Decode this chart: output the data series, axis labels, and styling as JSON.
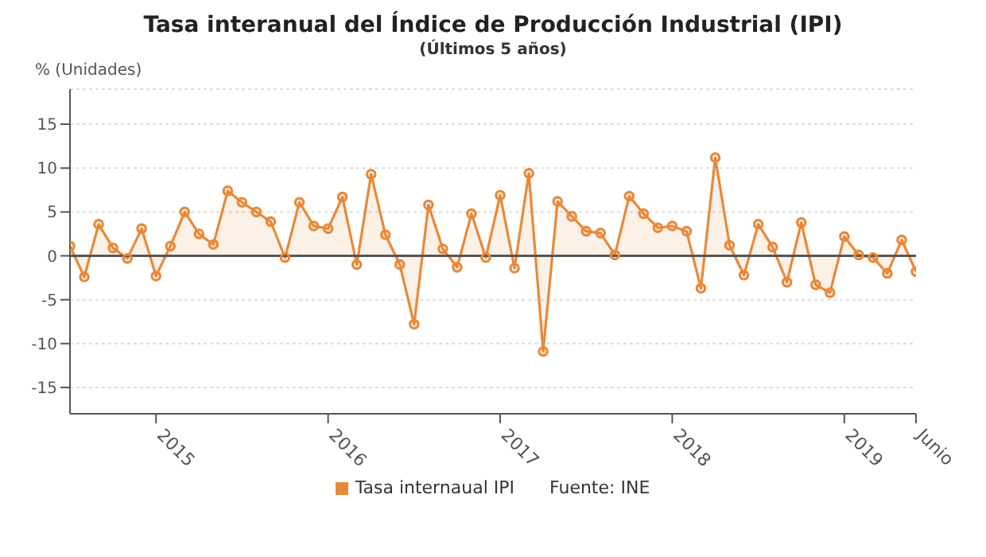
{
  "chart_data": {
    "type": "area",
    "title": "Tasa interanual del Índice de Producción Industrial (IPI)",
    "subtitle": "(Últimos 5 años)",
    "ylabel": "% (Unidades)",
    "x": [
      "2014-07",
      "2014-08",
      "2014-09",
      "2014-10",
      "2014-11",
      "2014-12",
      "2015-01",
      "2015-02",
      "2015-03",
      "2015-04",
      "2015-05",
      "2015-06",
      "2015-07",
      "2015-08",
      "2015-09",
      "2015-10",
      "2015-11",
      "2015-12",
      "2016-01",
      "2016-02",
      "2016-03",
      "2016-04",
      "2016-05",
      "2016-06",
      "2016-07",
      "2016-08",
      "2016-09",
      "2016-10",
      "2016-11",
      "2016-12",
      "2017-01",
      "2017-02",
      "2017-03",
      "2017-04",
      "2017-05",
      "2017-06",
      "2017-07",
      "2017-08",
      "2017-09",
      "2017-10",
      "2017-11",
      "2017-12",
      "2018-01",
      "2018-02",
      "2018-03",
      "2018-04",
      "2018-05",
      "2018-06",
      "2018-07",
      "2018-08",
      "2018-09",
      "2018-10",
      "2018-11",
      "2018-12",
      "2019-01",
      "2019-02",
      "2019-03",
      "2019-04",
      "2019-05",
      "2019-06"
    ],
    "series": [
      {
        "name": "Tasa internaual IPI",
        "color": "#e8893a",
        "values": [
          1.1,
          -2.4,
          3.6,
          0.9,
          -0.3,
          3.1,
          -2.3,
          1.1,
          5.0,
          2.5,
          1.3,
          7.4,
          6.1,
          5.0,
          3.9,
          -0.2,
          6.1,
          3.4,
          3.1,
          6.7,
          -1.0,
          9.3,
          2.4,
          -1.0,
          -7.8,
          5.8,
          0.8,
          -1.3,
          4.8,
          -0.2,
          6.9,
          -1.4,
          9.4,
          -10.9,
          6.2,
          4.5,
          2.8,
          2.6,
          0.1,
          6.8,
          4.8,
          3.2,
          3.4,
          2.8,
          -3.7,
          11.2,
          1.2,
          -2.2,
          3.6,
          1.0,
          -3.0,
          3.8,
          -3.3,
          -4.2,
          2.2,
          0.1,
          -0.2,
          -2.0,
          1.8,
          -1.8
        ]
      }
    ],
    "xlim": [
      "2014-07",
      "2019-06"
    ],
    "xticks": [
      {
        "value": "2015-01",
        "label": "2015"
      },
      {
        "value": "2016-01",
        "label": "2016"
      },
      {
        "value": "2017-01",
        "label": "2017"
      },
      {
        "value": "2018-01",
        "label": "2018"
      },
      {
        "value": "2019-01",
        "label": "2019"
      },
      {
        "value": "2019-06",
        "label": "Junio"
      }
    ],
    "ylim": [
      -18,
      19
    ],
    "yticks": [
      -15,
      -10,
      -5,
      0,
      5,
      10,
      15
    ],
    "ref_lines": [
      {
        "axis": "y",
        "value": 0,
        "color": "#555555"
      }
    ],
    "grid": "y",
    "legend": "bottom",
    "marker": "circle",
    "line_style": "solid",
    "annotations": [
      "Fuente: INE"
    ]
  }
}
